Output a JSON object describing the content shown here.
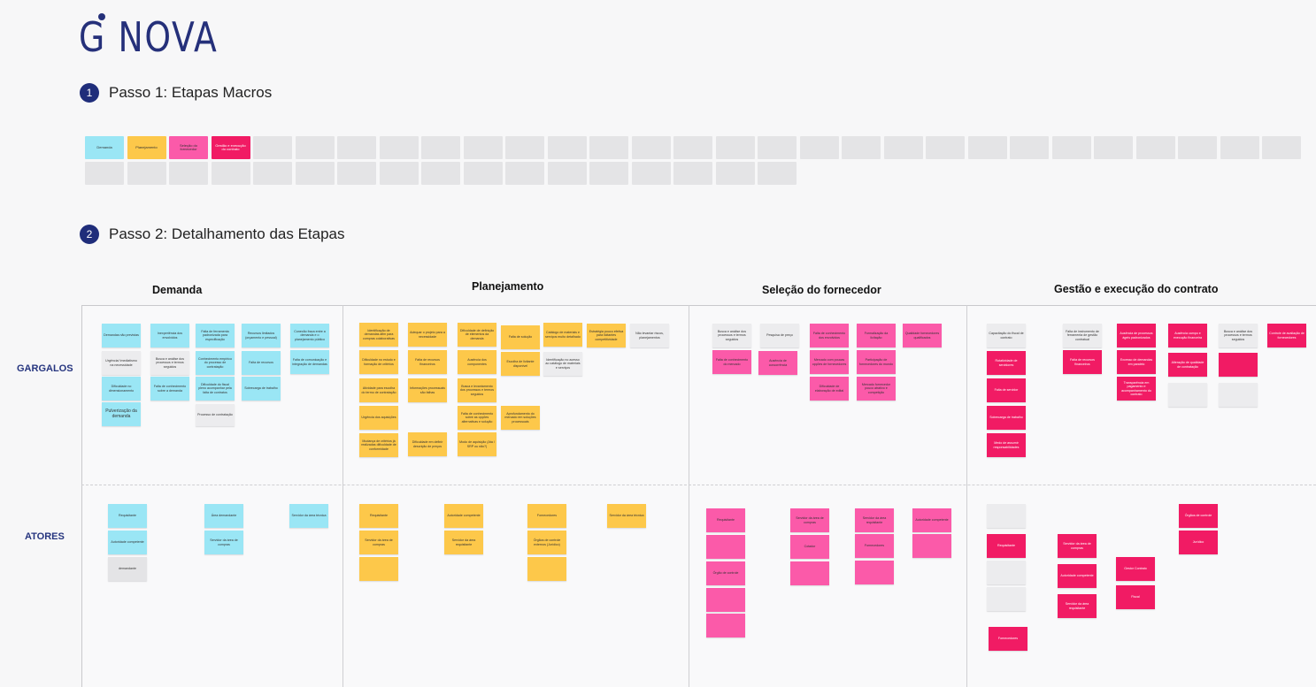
{
  "logo": {
    "text": "G NOVA"
  },
  "steps": [
    {
      "num": "1",
      "title": "Passo 1: Etapas Macros"
    },
    {
      "num": "2",
      "title": "Passo 2: Detalhamento das Etapas"
    }
  ],
  "macro": {
    "cells": [
      "Demanda",
      "Planejamento",
      "Seleção do fornecedor",
      "Gestão e execução do contrato"
    ]
  },
  "columns": [
    "Demanda",
    "Planejamento",
    "Seleção do fornecedor",
    "Gestão e execução do contrato"
  ],
  "rows": [
    "GARGALOS",
    "ATORES"
  ],
  "notes": {
    "demanda_gargalos": [
      "Demandas não previstas",
      "Urgência/ Imediatismo na necessidade",
      "Dificuldade no dimensionamento",
      "Pulverização da demanda",
      "Inexperiência dos envolvidos",
      "Busca e análise dos processos e termos seguidos",
      "Falta de conhecimento sobre a demanda",
      "Falta de ferramenta padronizada para especificação",
      "Conhecimento empírico do processo de contratação",
      "Dificuldade do fiscal pleno acompanhar pela falta de contratos",
      "Processo de contratação",
      "Recursos limitados (orçamento e pessoal)",
      "Falta de recursos",
      "Sobrecarga de trabalho",
      "Conexão fraca entre a demanda e o planejamento público",
      "Falta de comunicação e integração de demandas"
    ],
    "planejamento_gargalos": [
      "Identificação de demandas afim para compras colaborativas",
      "Dificuldade no estudo e formação de critérios",
      "Atividade para escolha do termo de contratação",
      "Urgência dos aquisições",
      "Mudança de critérios já realizadas dificuldade de conformidade",
      "Adequar o projeto para a necessidade",
      "Falta de recursos financeiros",
      "Informações processuais são falhas",
      "Dificuldade em definir descrição de preços",
      "Dificuldade de definição de elementos da demanda",
      "Ausência dos componentes",
      "Busca e levantamento dos processos e termos seguidos",
      "Falta de conhecimento sobre as opções alternativas e solução",
      "Modo de aquisição (Ata / SRP ou não?)",
      "Falta de solução",
      "Escolha de licitante disponível",
      "Aprofundamento do mercado em soluções processuais",
      "Catálogo de materiais e serviços muito detalhado",
      "Identificação no acesso ao catálogo de materiais e serviços",
      "Estratégia pouco efetiva para licitantes competitividade",
      "Não levantar riscos, planejamentos"
    ],
    "selecao_gargalos": [
      "Busca e análise dos processos e termos seguidos",
      "Pesquisa de preço",
      "Ausência de concorrência",
      "Falta de conhecimento dos envolvidos",
      "Falta de conhecimento do mercado",
      "Mercado com poucas opções de fornecedores",
      "Dificuldade de elaboração de edital",
      "Formalização da licitação",
      "Participação de fornecedores do mundo",
      "Mercado fornecedor pouco atrativo e competição",
      "Qualidade fornecedores qualificados"
    ],
    "gestao_gargalos": [
      "Capacitação do fiscal de contrato",
      "Rotatividade de servidores",
      "Falta de servidor",
      "Sobrecarga de trabalho",
      "Medo de assumir responsabilidades",
      "Falta de instrumento de ferramenta de gestão contratual",
      "Falta de recursos financeiros",
      "Ausência de processos ágeis padronizados",
      "Excesso de demandas em paralelo",
      "Transparência em pagamento e acompanhamento do contrato",
      "Ausência campo e execução financeira",
      "Alteração de qualidade de contratação",
      "Busca e análise dos processos e termos seguidos",
      "Controle de avaliação de fornecedores"
    ],
    "demanda_atores": [
      "Requisitante",
      "Autoridade competente",
      "demandante",
      "Área demandante",
      "Servidor da área de compras",
      "Servidor da área técnica"
    ],
    "planejamento_atores": [
      "Requisitante",
      "Servidor da área de compras",
      "Autoridade competente",
      "Servidor da área requisitante",
      "Fornecedores",
      "Órgãos de controle externos (Jurídico)",
      "Servidor da área técnica"
    ],
    "selecao_atores": [
      "Requisitante",
      "Órgão de controle",
      "Servidor da área de compras",
      "Cotador",
      "Servidor da área requisitante",
      "Fornecedores",
      "Autoridade competente"
    ],
    "gestao_atores": [
      "Requisitante",
      "Fornecedores",
      "Servidor da área de compras",
      "Autoridade competente",
      "Servidor da área requisitante",
      "Gestor Contrato",
      "Fiscal",
      "Órgãos de controle",
      "Jurídico"
    ]
  }
}
